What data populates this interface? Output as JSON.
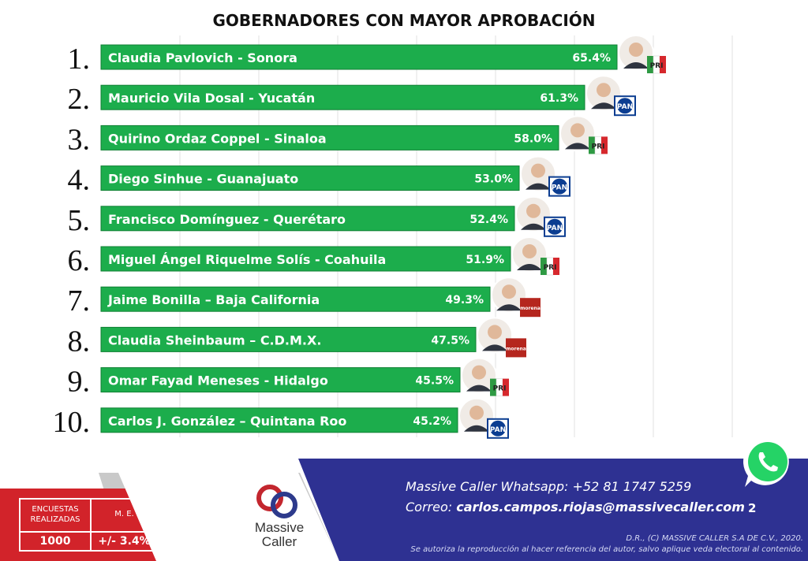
{
  "title": "GOBERNADORES CON MAYOR APROBACIÓN",
  "chart_data": {
    "type": "bar",
    "orientation": "horizontal",
    "title": "GOBERNADORES CON MAYOR APROBACIÓN",
    "bar_color": "#1cad4c",
    "grid": true,
    "xlim": [
      0,
      80
    ],
    "items": [
      {
        "rank": "1.",
        "label": "Claudia Pavlovich - Sonora",
        "value": 65.4,
        "value_label": "65.4%",
        "party": "PRI"
      },
      {
        "rank": "2.",
        "label": "Mauricio Vila Dosal - Yucatán",
        "value": 61.3,
        "value_label": "61.3%",
        "party": "PAN"
      },
      {
        "rank": "3.",
        "label": "Quirino Ordaz Coppel - Sinaloa",
        "value": 58.0,
        "value_label": "58.0%",
        "party": "PRI"
      },
      {
        "rank": "4.",
        "label": "Diego Sinhue - Guanajuato",
        "value": 53.0,
        "value_label": "53.0%",
        "party": "PAN"
      },
      {
        "rank": "5.",
        "label": "Francisco Domínguez - Querétaro",
        "value": 52.4,
        "value_label": "52.4%",
        "party": "PAN"
      },
      {
        "rank": "6.",
        "label": "Miguel Ángel Riquelme Solís - Coahuila",
        "value": 51.9,
        "value_label": "51.9%",
        "party": "PRI"
      },
      {
        "rank": "7.",
        "label": "Jaime Bonilla – Baja California",
        "value": 49.3,
        "value_label": "49.3%",
        "party": "morena"
      },
      {
        "rank": "8.",
        "label": "Claudia Sheinbaum – C.D.M.X.",
        "value": 47.5,
        "value_label": "47.5%",
        "party": "morena"
      },
      {
        "rank": "9.",
        "label": "Omar Fayad Meneses - Hidalgo",
        "value": 45.5,
        "value_label": "45.5%",
        "party": "PRI"
      },
      {
        "rank": "10.",
        "label": "Carlos J. González – Quintana Roo",
        "value": 45.2,
        "value_label": "45.2%",
        "party": "PAN"
      }
    ]
  },
  "party_logos": {
    "PRI": {
      "text": "PRI",
      "colors": [
        "#2e9a43",
        "#ffffff",
        "#d6282d"
      ]
    },
    "PAN": {
      "text": "PAN",
      "colors": [
        "#0b3d91",
        "#ffffff"
      ]
    },
    "morena": {
      "text": "morena",
      "colors": [
        "#b5261e",
        "#ffffff"
      ]
    }
  },
  "footer": {
    "stats": {
      "surveys_header": "ENCUESTAS REALIZADAS",
      "surveys_value": "1000",
      "me_header": "M. E.",
      "me_value": "+/- 3.4%"
    },
    "logo": {
      "line1": "Massive",
      "line2": "Caller"
    },
    "whatsapp_line": "Massive Caller Whatsapp: +52   81 1747 5259",
    "email_label": "Correo:",
    "email": "carlos.campos.riojas@massivecaller.com",
    "page_number": "2",
    "copyright": "D.R., (C) MASSIVE CALLER S.A DE C.V., 2020.",
    "disclaimer": "Se autoriza la reproducción al hacer referencia del autor, salvo aplique veda electoral al contenido.",
    "colors": {
      "red": "#d2232a",
      "navy": "#2e3192",
      "grey": "#bfbfbf",
      "whatsapp": "#25d366"
    }
  }
}
